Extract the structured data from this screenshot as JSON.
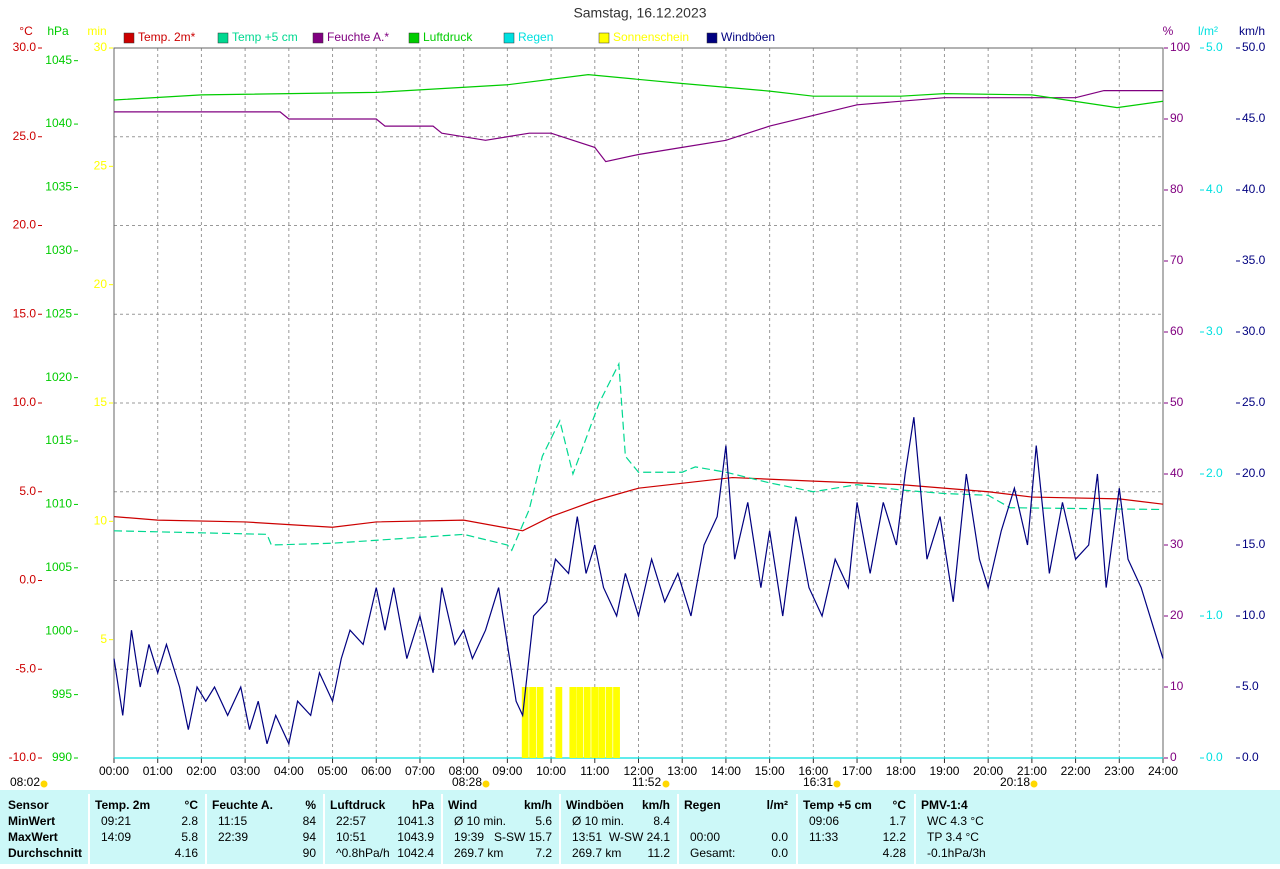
{
  "chart_data": {
    "type": "line",
    "title": "Samstag, 16.12.2023",
    "xlim": [
      0,
      24
    ],
    "xticks": [
      {
        "value": 0,
        "label": "00:00"
      },
      {
        "value": 1,
        "label": "01:00"
      },
      {
        "value": 2,
        "label": "02:00"
      },
      {
        "value": 3,
        "label": "03:00"
      },
      {
        "value": 4,
        "label": "04:00"
      },
      {
        "value": 5,
        "label": "05:00"
      },
      {
        "value": 6,
        "label": "06:00"
      },
      {
        "value": 7,
        "label": "07:00"
      },
      {
        "value": 8,
        "label": "08:00"
      },
      {
        "value": 9,
        "label": "09:00"
      },
      {
        "value": 10,
        "label": "10:00"
      },
      {
        "value": 11,
        "label": "11:00"
      },
      {
        "value": 12,
        "label": "12:00"
      },
      {
        "value": 13,
        "label": "13:00"
      },
      {
        "value": 14,
        "label": "14:00"
      },
      {
        "value": 15,
        "label": "15:00"
      },
      {
        "value": 16,
        "label": "16:00"
      },
      {
        "value": 17,
        "label": "17:00"
      },
      {
        "value": 18,
        "label": "18:00"
      },
      {
        "value": 19,
        "label": "19:00"
      },
      {
        "value": 20,
        "label": "20:00"
      },
      {
        "value": 21,
        "label": "21:00"
      },
      {
        "value": 22,
        "label": "22:00"
      },
      {
        "value": 23,
        "label": "23:00"
      },
      {
        "value": 24,
        "label": "24:00"
      }
    ],
    "ylabel": "°C",
    "ylim": [
      -10,
      30
    ],
    "yticks": [
      {
        "value": -10,
        "label": "-10.0"
      },
      {
        "value": -5,
        "label": "-5.0"
      },
      {
        "value": 0,
        "label": "0.0"
      },
      {
        "value": 5,
        "label": "5.0"
      },
      {
        "value": 10,
        "label": "10.0"
      },
      {
        "value": 15,
        "label": "15.0"
      },
      {
        "value": 20,
        "label": "20.0"
      },
      {
        "value": 25,
        "label": "25.0"
      },
      {
        "value": 30,
        "label": "30.0"
      }
    ],
    "y2label": "hPa",
    "y2lim": [
      990,
      1046
    ],
    "y2ticks": [
      990,
      995,
      1000,
      1005,
      1010,
      1015,
      1020,
      1025,
      1030,
      1035,
      1040,
      1045
    ],
    "y3label": "min",
    "y3lim": [
      0,
      30
    ],
    "y3ticks": [
      5,
      10,
      15,
      20,
      25,
      30
    ],
    "y4label": "%",
    "y4lim": [
      0,
      100
    ],
    "y4ticks": [
      0,
      10,
      20,
      30,
      40,
      50,
      60,
      70,
      80,
      90,
      100
    ],
    "y5label": "l/m²",
    "y5lim": [
      0,
      5
    ],
    "y5ticks": [
      {
        "value": 0,
        "label": "0.0"
      },
      {
        "value": 1,
        "label": "1.0"
      },
      {
        "value": 2,
        "label": "2.0"
      },
      {
        "value": 3,
        "label": "3.0"
      },
      {
        "value": 4,
        "label": "4.0"
      },
      {
        "value": 5,
        "label": "5.0"
      }
    ],
    "y6label": "km/h",
    "y6lim": [
      0,
      50
    ],
    "y6ticks": [
      {
        "value": 0,
        "label": "0.0"
      },
      {
        "value": 5,
        "label": "5.0"
      },
      {
        "value": 10,
        "label": "10.0"
      },
      {
        "value": 15,
        "label": "15.0"
      },
      {
        "value": 20,
        "label": "20.0"
      },
      {
        "value": 25,
        "label": "25.0"
      },
      {
        "value": 30,
        "label": "30.0"
      },
      {
        "value": 35,
        "label": "35.0"
      },
      {
        "value": 40,
        "label": "40.0"
      },
      {
        "value": 45,
        "label": "45.0"
      },
      {
        "value": 50,
        "label": "50.0"
      }
    ],
    "grid": true,
    "series": [
      {
        "name": "Temp. 2m*",
        "color": "#cc0000",
        "axis": "y",
        "type": "line",
        "x": [
          0,
          1,
          3,
          5,
          6,
          8,
          9.35,
          10,
          11,
          12,
          14.15,
          16,
          18,
          20,
          21,
          23,
          24
        ],
        "values": [
          3.6,
          3.4,
          3.3,
          3.0,
          3.3,
          3.4,
          2.8,
          3.6,
          4.5,
          5.2,
          5.8,
          5.6,
          5.4,
          5.0,
          4.7,
          4.6,
          4.3
        ]
      },
      {
        "name": "Temp +5 cm",
        "color": "#00d890",
        "axis": "y",
        "type": "dashed",
        "x": [
          0,
          3.5,
          3.6,
          5,
          8,
          9,
          9.1,
          9.5,
          9.8,
          10.2,
          10.5,
          10.8,
          11.1,
          11.55,
          11.7,
          12,
          13,
          13.3,
          14,
          15,
          16,
          17,
          18,
          19,
          20,
          20.5,
          24
        ],
        "values": [
          2.8,
          2.6,
          2.0,
          2.1,
          2.6,
          2.0,
          1.7,
          4,
          7,
          9,
          6,
          8,
          10,
          12.2,
          7,
          6.1,
          6.1,
          6.4,
          6.1,
          5.5,
          5.0,
          5.4,
          5.1,
          4.9,
          4.8,
          4.1,
          4.0
        ]
      },
      {
        "name": "Feuchte A.*",
        "color": "#800080",
        "axis": "y4",
        "type": "line",
        "x": [
          0,
          3.8,
          4,
          6,
          6.2,
          7.3,
          7.5,
          8.5,
          9,
          9.5,
          10,
          11,
          11.25,
          12,
          13,
          14,
          15,
          16,
          17,
          19,
          22,
          22.65,
          24
        ],
        "values": [
          91,
          91,
          90,
          90,
          89,
          89,
          88,
          87,
          87.5,
          88,
          88,
          86,
          84,
          85,
          86,
          87,
          89,
          90.5,
          92,
          93,
          93,
          94,
          94
        ]
      },
      {
        "name": "Luftdruck",
        "color": "#00cc00",
        "axis": "y2",
        "type": "line",
        "x": [
          0,
          2,
          6,
          9,
          10.85,
          13,
          15,
          16,
          18,
          19,
          21,
          22.95,
          24
        ],
        "values": [
          1041.9,
          1042.3,
          1042.5,
          1043.1,
          1043.9,
          1043.2,
          1042.6,
          1042.2,
          1042.2,
          1042.4,
          1042.3,
          1041.3,
          1041.8
        ]
      },
      {
        "name": "Regen",
        "color": "#00e0e0",
        "axis": "y5",
        "type": "line",
        "x": [
          0,
          24
        ],
        "values": [
          0,
          0
        ]
      },
      {
        "name": "Sonnenschein",
        "color": "#ffff00",
        "axis": "y3",
        "type": "bar",
        "x": [
          9.33,
          9.5,
          9.67,
          10.1,
          10.42,
          10.58,
          10.75,
          10.92,
          11.08,
          11.25,
          11.42
        ],
        "values": [
          3,
          3,
          3,
          3,
          3,
          3,
          3,
          3,
          3,
          3,
          3
        ]
      },
      {
        "name": "Windböen",
        "color": "#000080",
        "axis": "y6",
        "type": "line",
        "x": [
          0,
          0.2,
          0.4,
          0.6,
          0.8,
          1.0,
          1.2,
          1.5,
          1.7,
          1.9,
          2.1,
          2.3,
          2.6,
          2.9,
          3.1,
          3.3,
          3.5,
          3.7,
          4.0,
          4.2,
          4.5,
          4.7,
          5.0,
          5.2,
          5.4,
          5.7,
          6.0,
          6.2,
          6.4,
          6.7,
          7.0,
          7.3,
          7.5,
          7.8,
          8.0,
          8.2,
          8.5,
          8.8,
          9.0,
          9.2,
          9.35,
          9.6,
          9.9,
          10.1,
          10.4,
          10.6,
          10.8,
          11.0,
          11.2,
          11.5,
          11.7,
          12.0,
          12.3,
          12.6,
          12.9,
          13.2,
          13.5,
          13.8,
          14.0,
          14.2,
          14.5,
          14.8,
          15.0,
          15.3,
          15.6,
          15.9,
          16.2,
          16.5,
          16.8,
          17.0,
          17.3,
          17.6,
          17.9,
          18.1,
          18.3,
          18.6,
          18.9,
          19.2,
          19.5,
          19.8,
          20.0,
          20.3,
          20.6,
          20.9,
          21.1,
          21.4,
          21.7,
          22.0,
          22.3,
          22.5,
          22.7,
          23.0,
          23.2,
          23.5,
          23.8,
          24.0
        ],
        "values": [
          7,
          3,
          9,
          5,
          8,
          6,
          8,
          5,
          2,
          5,
          4,
          5,
          3,
          5,
          2,
          4,
          1,
          3,
          1,
          4,
          3,
          6,
          4,
          7,
          9,
          8,
          12,
          9,
          12,
          7,
          10,
          6,
          12,
          8,
          9,
          7,
          9,
          12,
          8,
          4,
          3,
          10,
          11,
          14,
          13,
          17,
          13,
          15,
          12,
          10,
          13,
          10,
          14,
          11,
          13,
          10,
          15,
          17,
          22,
          14,
          18,
          12,
          16,
          10,
          17,
          12,
          10,
          14,
          12,
          18,
          13,
          18,
          15,
          20,
          24,
          14,
          17,
          11,
          20,
          14,
          12,
          16,
          19,
          15,
          22,
          13,
          18,
          14,
          15,
          20,
          12,
          19,
          14,
          12,
          9,
          7
        ]
      }
    ],
    "annotations": [
      "08:02",
      "08:28",
      "11:52",
      "16:31",
      "20:18"
    ]
  },
  "table": {
    "groups": [
      {
        "header": "Sensor",
        "rows": [
          [
            "MinWert"
          ],
          [
            "MaxWert"
          ],
          [
            "Durchschnitt"
          ]
        ]
      },
      {
        "header": "Temp. 2m",
        "unit": "°C",
        "rows": [
          [
            "09:21",
            "2.8"
          ],
          [
            "14:09",
            "5.8"
          ],
          [
            null,
            "4.16"
          ]
        ]
      },
      {
        "header": "Feuchte A.",
        "unit": "%",
        "rows": [
          [
            "11:15",
            "84"
          ],
          [
            "22:39",
            "94"
          ],
          [
            null,
            "90"
          ]
        ]
      },
      {
        "header": "Luftdruck",
        "unit": "hPa",
        "rows": [
          [
            "22:57",
            "1041.3"
          ],
          [
            "10:51",
            "1043.9"
          ],
          [
            "^0.8hPa/h",
            "1042.4"
          ]
        ]
      },
      {
        "header": "Wind",
        "unit": "km/h",
        "rows": [
          [
            "Ø 10 min.",
            "5.6"
          ],
          [
            "19:39",
            "S-SW 15.7"
          ],
          [
            "269.7 km",
            "7.2"
          ]
        ]
      },
      {
        "header": "Windböen",
        "unit": "km/h",
        "rows": [
          [
            "Ø 10 min.",
            "8.4"
          ],
          [
            "13:51",
            "W-SW 24.1"
          ],
          [
            "269.7 km",
            "11.2"
          ]
        ]
      },
      {
        "header": "Regen",
        "unit": "l/m²",
        "rows": [
          [
            null,
            null
          ],
          [
            "00:00",
            "0.0"
          ],
          [
            "Gesamt:",
            "0.0"
          ]
        ]
      },
      {
        "header": "Temp +5 cm",
        "unit": "°C",
        "rows": [
          [
            "09:06",
            "1.7"
          ],
          [
            "11:33",
            "12.2"
          ],
          [
            null,
            "4.28"
          ]
        ]
      },
      {
        "header": "PMV-1:4",
        "rows": [
          [
            "WC 4.3 °C"
          ],
          [
            "TP 3.4 °C"
          ],
          [
            "-0.1hPa/3h"
          ]
        ]
      }
    ]
  }
}
